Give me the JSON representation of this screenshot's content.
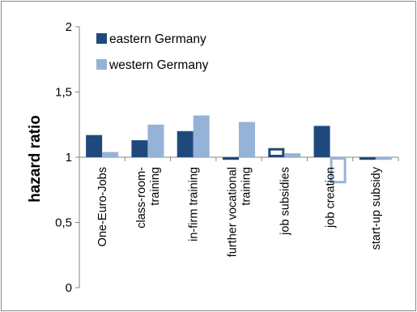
{
  "chart_data": {
    "type": "bar",
    "ylabel": "hazard ratio",
    "ylim": [
      0,
      2
    ],
    "baseline": 1,
    "yticks": [
      "0",
      "0,5",
      "1",
      "1,5",
      "2"
    ],
    "categories": [
      [
        "One-Euro-Jobs"
      ],
      [
        "class-room-",
        "training"
      ],
      [
        "in-firm training"
      ],
      [
        "further vocational",
        "training"
      ],
      [
        "job subsidies"
      ],
      [
        "job creation"
      ],
      [
        "start-up subsidy"
      ]
    ],
    "series": [
      {
        "name": "eastern Germany",
        "color": "#1f497d",
        "values": [
          1.17,
          1.13,
          1.2,
          0.98,
          1.07,
          1.24,
          0.98
        ],
        "outlined": [
          false,
          false,
          false,
          false,
          true,
          false,
          false
        ]
      },
      {
        "name": "western Germany",
        "color": "#95b3d7",
        "values": [
          1.04,
          1.25,
          1.32,
          1.27,
          1.03,
          0.8,
          0.98
        ],
        "outlined": [
          false,
          false,
          false,
          false,
          false,
          true,
          false
        ]
      }
    ],
    "legend_position": "top-left",
    "grid": false
  }
}
